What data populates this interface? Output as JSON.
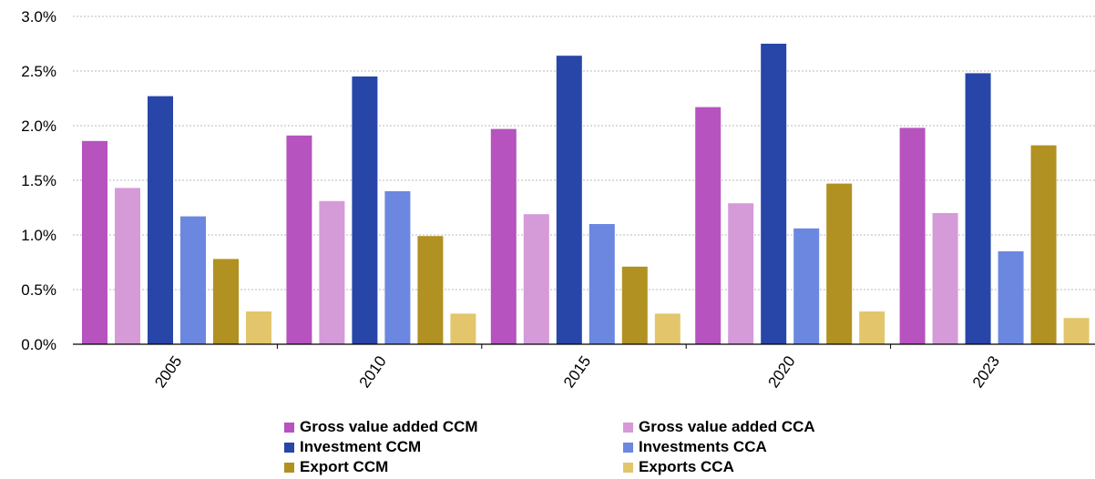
{
  "chart_data": {
    "type": "bar",
    "title": "",
    "xlabel": "",
    "ylabel": "",
    "categories": [
      "2005",
      "2010",
      "2015",
      "2020",
      "2023"
    ],
    "ylim": [
      0,
      3.0
    ],
    "yticks": [
      "0.0%",
      "0.5%",
      "1.0%",
      "1.5%",
      "2.0%",
      "2.5%",
      "3.0%"
    ],
    "grid": true,
    "legend_position": "bottom",
    "series": [
      {
        "name": "Gross value added CCM",
        "color": "#b653bf",
        "values": [
          1.86,
          1.91,
          1.97,
          2.17,
          1.98
        ]
      },
      {
        "name": "Gross value added CCA",
        "color": "#d59ad8",
        "values": [
          1.43,
          1.31,
          1.19,
          1.29,
          1.2
        ]
      },
      {
        "name": "Investment CCM",
        "color": "#2845a8",
        "values": [
          2.27,
          2.45,
          2.64,
          2.75,
          2.48
        ]
      },
      {
        "name": "Investments CCA",
        "color": "#6b87e0",
        "values": [
          1.17,
          1.4,
          1.1,
          1.06,
          0.85
        ]
      },
      {
        "name": "Export CCM",
        "color": "#b09122",
        "values": [
          0.78,
          0.99,
          0.71,
          1.47,
          1.82
        ]
      },
      {
        "name": "Exports CCA",
        "color": "#e3c66b",
        "values": [
          0.3,
          0.28,
          0.28,
          0.3,
          0.24
        ]
      }
    ]
  }
}
